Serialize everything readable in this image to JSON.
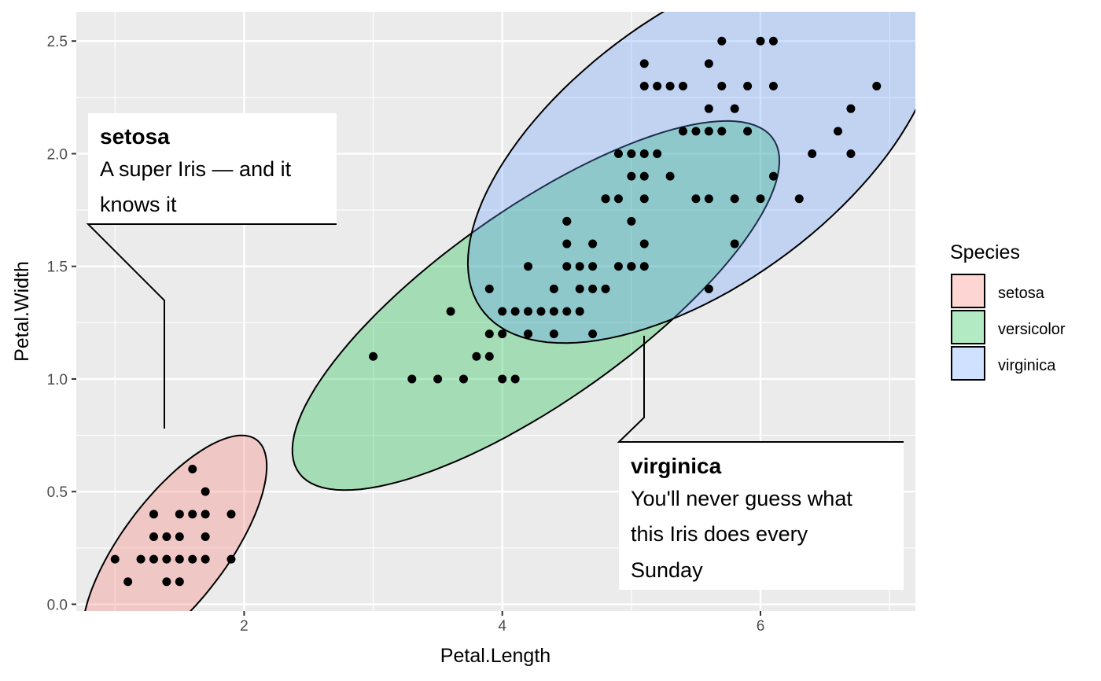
{
  "chart_data": {
    "type": "scatter",
    "xlabel": "Petal.Length",
    "ylabel": "Petal.Width",
    "xlim": [
      0.7,
      7.2
    ],
    "ylim": [
      -0.03,
      2.63
    ],
    "x_ticks": [
      2,
      4,
      6
    ],
    "y_ticks": [
      0.0,
      0.5,
      1.0,
      1.5,
      2.0,
      2.5
    ],
    "y_tick_labels": [
      "0.0",
      "0.5",
      "1.0",
      "1.5",
      "2.0",
      "2.5"
    ],
    "grid": true,
    "legend": {
      "title": "Species",
      "position": "right",
      "entries": [
        {
          "label": "setosa",
          "color": "#F8766D"
        },
        {
          "label": "versicolor",
          "color": "#00BA38"
        },
        {
          "label": "virginica",
          "color": "#619CFF"
        }
      ]
    },
    "series": [
      {
        "name": "setosa",
        "color": "#F8766D",
        "points": [
          [
            1.0,
            0.2
          ],
          [
            1.1,
            0.1
          ],
          [
            1.2,
            0.2
          ],
          [
            1.3,
            0.2
          ],
          [
            1.3,
            0.3
          ],
          [
            1.3,
            0.4
          ],
          [
            1.4,
            0.1
          ],
          [
            1.4,
            0.2
          ],
          [
            1.4,
            0.3
          ],
          [
            1.5,
            0.1
          ],
          [
            1.5,
            0.2
          ],
          [
            1.5,
            0.3
          ],
          [
            1.5,
            0.4
          ],
          [
            1.6,
            0.2
          ],
          [
            1.6,
            0.4
          ],
          [
            1.6,
            0.6
          ],
          [
            1.7,
            0.2
          ],
          [
            1.7,
            0.3
          ],
          [
            1.7,
            0.4
          ],
          [
            1.7,
            0.5
          ],
          [
            1.9,
            0.2
          ],
          [
            1.9,
            0.4
          ]
        ]
      },
      {
        "name": "versicolor",
        "color": "#00BA38",
        "points": [
          [
            3.0,
            1.1
          ],
          [
            3.3,
            1.0
          ],
          [
            3.5,
            1.0
          ],
          [
            3.6,
            1.3
          ],
          [
            3.7,
            1.0
          ],
          [
            3.8,
            1.1
          ],
          [
            3.9,
            1.1
          ],
          [
            3.9,
            1.2
          ],
          [
            3.9,
            1.4
          ],
          [
            4.0,
            1.0
          ],
          [
            4.0,
            1.2
          ],
          [
            4.0,
            1.3
          ],
          [
            4.1,
            1.0
          ],
          [
            4.1,
            1.3
          ],
          [
            4.2,
            1.2
          ],
          [
            4.2,
            1.3
          ],
          [
            4.2,
            1.5
          ],
          [
            4.3,
            1.3
          ],
          [
            4.4,
            1.2
          ],
          [
            4.4,
            1.3
          ],
          [
            4.4,
            1.4
          ],
          [
            4.5,
            1.3
          ],
          [
            4.5,
            1.5
          ],
          [
            4.5,
            1.6
          ],
          [
            4.5,
            1.7
          ],
          [
            4.6,
            1.3
          ],
          [
            4.6,
            1.4
          ],
          [
            4.6,
            1.5
          ],
          [
            4.7,
            1.2
          ],
          [
            4.7,
            1.4
          ],
          [
            4.7,
            1.5
          ],
          [
            4.7,
            1.6
          ],
          [
            4.8,
            1.4
          ],
          [
            4.8,
            1.8
          ],
          [
            4.9,
            1.5
          ],
          [
            5.0,
            1.5
          ],
          [
            5.0,
            1.7
          ],
          [
            5.1,
            1.6
          ]
        ]
      },
      {
        "name": "virginica",
        "color": "#619CFF",
        "points": [
          [
            4.5,
            1.7
          ],
          [
            4.8,
            1.8
          ],
          [
            4.9,
            1.8
          ],
          [
            4.9,
            2.0
          ],
          [
            5.0,
            1.5
          ],
          [
            5.0,
            1.9
          ],
          [
            5.0,
            2.0
          ],
          [
            5.1,
            1.5
          ],
          [
            5.1,
            1.8
          ],
          [
            5.1,
            1.9
          ],
          [
            5.1,
            2.0
          ],
          [
            5.1,
            2.3
          ],
          [
            5.1,
            2.4
          ],
          [
            5.2,
            2.0
          ],
          [
            5.2,
            2.3
          ],
          [
            5.3,
            1.9
          ],
          [
            5.3,
            2.3
          ],
          [
            5.4,
            2.1
          ],
          [
            5.4,
            2.3
          ],
          [
            5.5,
            1.8
          ],
          [
            5.5,
            2.1
          ],
          [
            5.6,
            1.4
          ],
          [
            5.6,
            1.8
          ],
          [
            5.6,
            2.1
          ],
          [
            5.6,
            2.2
          ],
          [
            5.6,
            2.4
          ],
          [
            5.7,
            2.1
          ],
          [
            5.7,
            2.3
          ],
          [
            5.7,
            2.5
          ],
          [
            5.8,
            1.6
          ],
          [
            5.8,
            1.8
          ],
          [
            5.8,
            2.2
          ],
          [
            5.9,
            2.1
          ],
          [
            5.9,
            2.3
          ],
          [
            6.0,
            1.8
          ],
          [
            6.0,
            2.5
          ],
          [
            6.1,
            1.9
          ],
          [
            6.1,
            2.3
          ],
          [
            6.1,
            2.5
          ],
          [
            6.3,
            1.8
          ],
          [
            6.4,
            2.0
          ],
          [
            6.6,
            2.1
          ],
          [
            6.7,
            2.0
          ],
          [
            6.7,
            2.2
          ],
          [
            6.9,
            2.3
          ]
        ]
      }
    ],
    "ellipses": [
      {
        "name": "setosa",
        "color": "#F8766D",
        "cx": 1.462,
        "cy": 0.246,
        "a": 0.82,
        "b": 0.3,
        "angle_deg": 32
      },
      {
        "name": "versicolor",
        "color": "#00BA38",
        "cx": 4.26,
        "cy": 1.326,
        "a": 2.0,
        "b": 0.48,
        "angle_deg": 20
      },
      {
        "name": "virginica",
        "color": "#619CFF",
        "cx": 5.552,
        "cy": 2.026,
        "a": 1.9,
        "b": 0.67,
        "angle_deg": 18
      }
    ],
    "annotations": [
      {
        "name": "setosa",
        "title": "setosa",
        "lines": [
          "A super Iris — and it",
          "knows it"
        ]
      },
      {
        "name": "virginica",
        "title": "virginica",
        "lines": [
          "You'll never guess what",
          "this Iris does every",
          "Sunday"
        ]
      }
    ]
  }
}
